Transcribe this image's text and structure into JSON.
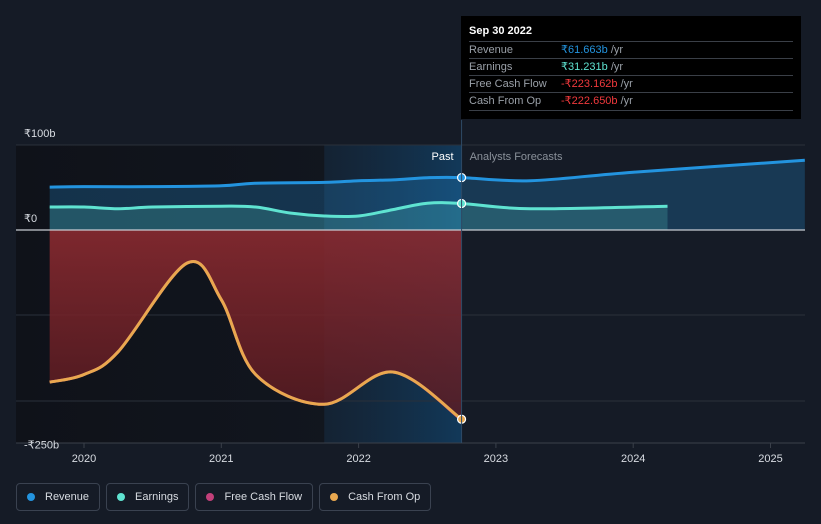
{
  "tooltip": {
    "date": "Sep 30 2022",
    "rows": [
      {
        "label": "Revenue",
        "value": "₹61.663b",
        "unit": " /yr",
        "color": "#2394df"
      },
      {
        "label": "Earnings",
        "value": "₹31.231b",
        "unit": " /yr",
        "color": "#5fe3d1"
      },
      {
        "label": "Free Cash Flow",
        "value": "-₹223.162b",
        "unit": " /yr",
        "color": "#f0393c"
      },
      {
        "label": "Cash From Op",
        "value": "-₹222.650b",
        "unit": " /yr",
        "color": "#f0393c"
      }
    ]
  },
  "chart_data": {
    "type": "line",
    "y_ticks": [
      {
        "v": 100,
        "label": "₹100b"
      },
      {
        "v": 0,
        "label": "₹0"
      },
      {
        "v": -250,
        "label": "-₹250b"
      }
    ],
    "x_ticks": [
      "2020",
      "2021",
      "2022",
      "2023",
      "2024",
      "2025"
    ],
    "ylim": [
      -250,
      100
    ],
    "past_label": "Past",
    "forecast_label": "Analysts Forecasts",
    "past_end": 2022.75,
    "series": [
      {
        "name": "Revenue",
        "color": "#2394df",
        "x": [
          2019.75,
          2020,
          2020.5,
          2021,
          2021.25,
          2021.75,
          2022,
          2022.25,
          2022.5,
          2022.75,
          2023.25,
          2024,
          2025.25
        ],
        "values": [
          50.5,
          51,
          51,
          52,
          55,
          56,
          58,
          59,
          61.5,
          61.663,
          58,
          68,
          82
        ]
      },
      {
        "name": "Earnings",
        "color": "#5fe3d1",
        "x": [
          2019.75,
          2020,
          2020.25,
          2020.5,
          2021,
          2021.25,
          2021.5,
          2021.75,
          2022,
          2022.25,
          2022.5,
          2022.75,
          2023.25,
          2024.25
        ],
        "values": [
          27,
          27,
          25,
          27,
          28,
          27,
          20,
          16.5,
          16.5,
          24,
          31.5,
          31.231,
          25,
          28
        ]
      },
      {
        "name": "Free Cash Flow",
        "color": "#c2407a",
        "x": [
          2019.75,
          2020,
          2020.25,
          2020.75,
          2021,
          2021.25,
          2021.75,
          2022.25,
          2022.75
        ],
        "values": [
          -179,
          -170,
          -143,
          -39,
          -82,
          -170,
          -205,
          -167,
          -223.162
        ]
      },
      {
        "name": "Cash From Op",
        "color": "#e9a84f",
        "x": [
          2019.75,
          2020,
          2020.25,
          2020.75,
          2021,
          2021.25,
          2021.75,
          2022.25,
          2022.75
        ],
        "values": [
          -179,
          -170,
          -143,
          -39,
          -82,
          -170,
          -205,
          -167,
          -222.65
        ]
      }
    ]
  },
  "legend": [
    "Revenue",
    "Earnings",
    "Free Cash Flow",
    "Cash From Op"
  ]
}
